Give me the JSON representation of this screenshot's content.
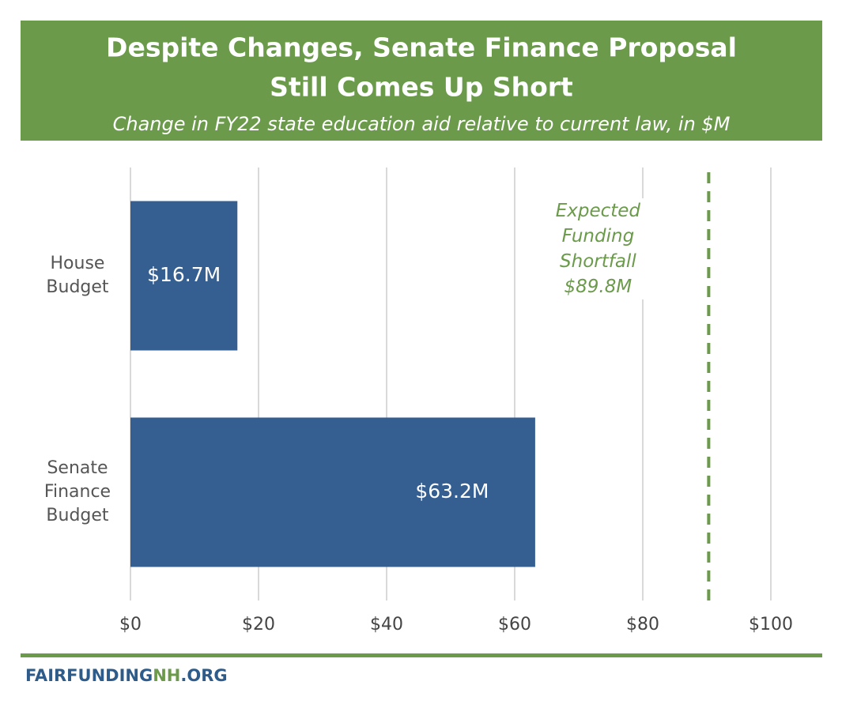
{
  "chart_data": {
    "type": "hbar",
    "title": [
      "Despite Changes, Senate Finance Proposal",
      "Still Comes Up Short"
    ],
    "subtitle": "Change in FY22 state education aid relative to current law, in $M",
    "categories": [
      "House Budget",
      "Senate Finance Budget"
    ],
    "values": [
      16.7,
      63.2
    ],
    "value_labels": [
      "$16.7M",
      "$63.2M"
    ],
    "color": "#365f91",
    "xlim": [
      0,
      100
    ],
    "xticks": [
      {
        "value": 0,
        "label": "$0"
      },
      {
        "value": 20,
        "label": "$20"
      },
      {
        "value": 40,
        "label": "$40"
      },
      {
        "value": 60,
        "label": "$60"
      },
      {
        "value": 80,
        "label": "$80"
      },
      {
        "value": 100,
        "label": "$100"
      }
    ],
    "grid": true,
    "reference_line": {
      "value": 89.8,
      "label": "Expected Funding Shortfall $89.8M",
      "color": "#6a9a4a"
    },
    "source": [
      "FAIRFUNDING",
      "NH",
      ".ORG"
    ]
  }
}
